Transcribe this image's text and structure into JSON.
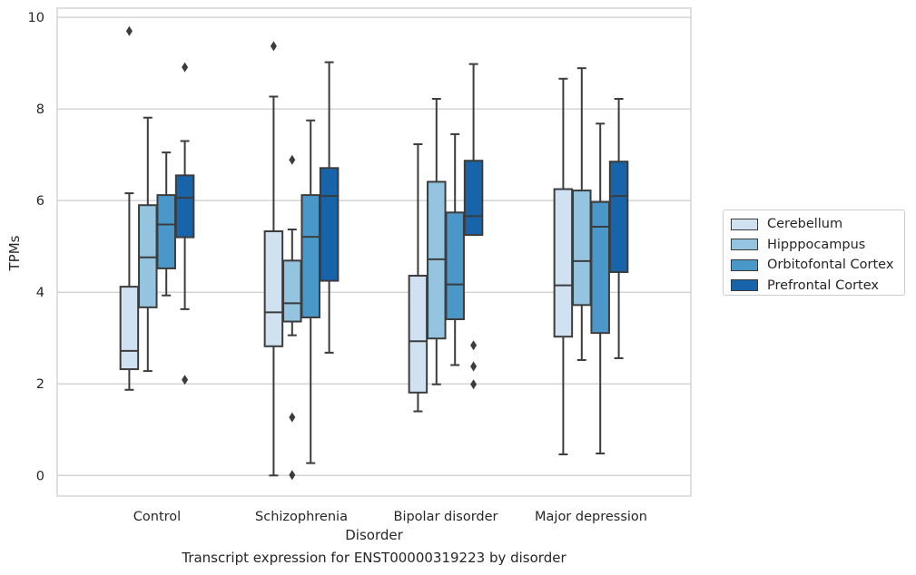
{
  "caption": "Transcript expression for ENST00000319223 by disorder",
  "chart_data": {
    "type": "box",
    "xlabel": "Disorder",
    "ylabel": "TPMs",
    "ylim": [
      -0.45,
      10.2
    ],
    "yticks": [
      0,
      2,
      4,
      6,
      8,
      10
    ],
    "grid": "horizontal",
    "legend_position": "right",
    "categories": [
      "Control",
      "Schizophrenia",
      "Bipolar disorder",
      "Major depression"
    ],
    "series": [
      {
        "name": "Cerebellum",
        "color": "#d0e1f2",
        "boxes": [
          {
            "whislo": 1.87,
            "q1": 2.32,
            "med": 2.72,
            "q3": 4.12,
            "whishi": 6.16,
            "fliers": [
              9.7
            ]
          },
          {
            "whislo": 0.0,
            "q1": 2.82,
            "med": 3.56,
            "q3": 5.33,
            "whishi": 8.27,
            "fliers": [
              9.37
            ]
          },
          {
            "whislo": 1.4,
            "q1": 1.81,
            "med": 2.93,
            "q3": 4.36,
            "whishi": 7.23,
            "fliers": []
          },
          {
            "whislo": 0.46,
            "q1": 3.03,
            "med": 4.15,
            "q3": 6.25,
            "whishi": 8.66,
            "fliers": []
          }
        ]
      },
      {
        "name": "Hipppocampus",
        "color": "#94c4df",
        "boxes": [
          {
            "whislo": 2.28,
            "q1": 3.67,
            "med": 4.76,
            "q3": 5.9,
            "whishi": 7.81,
            "fliers": []
          },
          {
            "whislo": 3.06,
            "q1": 3.36,
            "med": 3.76,
            "q3": 4.69,
            "whishi": 5.37,
            "fliers": [
              6.89,
              1.27,
              0.01
            ]
          },
          {
            "whislo": 1.99,
            "q1": 2.99,
            "med": 4.72,
            "q3": 6.41,
            "whishi": 8.22,
            "fliers": []
          },
          {
            "whislo": 2.52,
            "q1": 3.72,
            "med": 4.68,
            "q3": 6.22,
            "whishi": 8.89,
            "fliers": []
          }
        ]
      },
      {
        "name": "Orbitofontal Cortex",
        "color": "#4a98c9",
        "boxes": [
          {
            "whislo": 3.93,
            "q1": 4.52,
            "med": 5.48,
            "q3": 6.12,
            "whishi": 7.05,
            "fliers": []
          },
          {
            "whislo": 0.27,
            "q1": 3.45,
            "med": 5.21,
            "q3": 6.12,
            "whishi": 7.75,
            "fliers": []
          },
          {
            "whislo": 2.41,
            "q1": 3.41,
            "med": 4.17,
            "q3": 5.74,
            "whishi": 7.45,
            "fliers": []
          },
          {
            "whislo": 0.48,
            "q1": 3.11,
            "med": 5.43,
            "q3": 5.97,
            "whishi": 7.68,
            "fliers": []
          }
        ]
      },
      {
        "name": "Prefrontal Cortex",
        "color": "#1764ab",
        "boxes": [
          {
            "whislo": 3.63,
            "q1": 5.2,
            "med": 6.06,
            "q3": 6.55,
            "whishi": 7.3,
            "fliers": [
              8.91,
              2.09
            ]
          },
          {
            "whislo": 2.68,
            "q1": 4.25,
            "med": 6.1,
            "q3": 6.71,
            "whishi": 9.02,
            "fliers": []
          },
          {
            "whislo": 5.25,
            "q1": 5.25,
            "med": 5.66,
            "q3": 6.87,
            "whishi": 8.98,
            "fliers": [
              2.84,
              2.38,
              1.99
            ]
          },
          {
            "whislo": 2.56,
            "q1": 4.44,
            "med": 6.1,
            "q3": 6.85,
            "whishi": 8.22,
            "fliers": []
          }
        ]
      }
    ]
  }
}
